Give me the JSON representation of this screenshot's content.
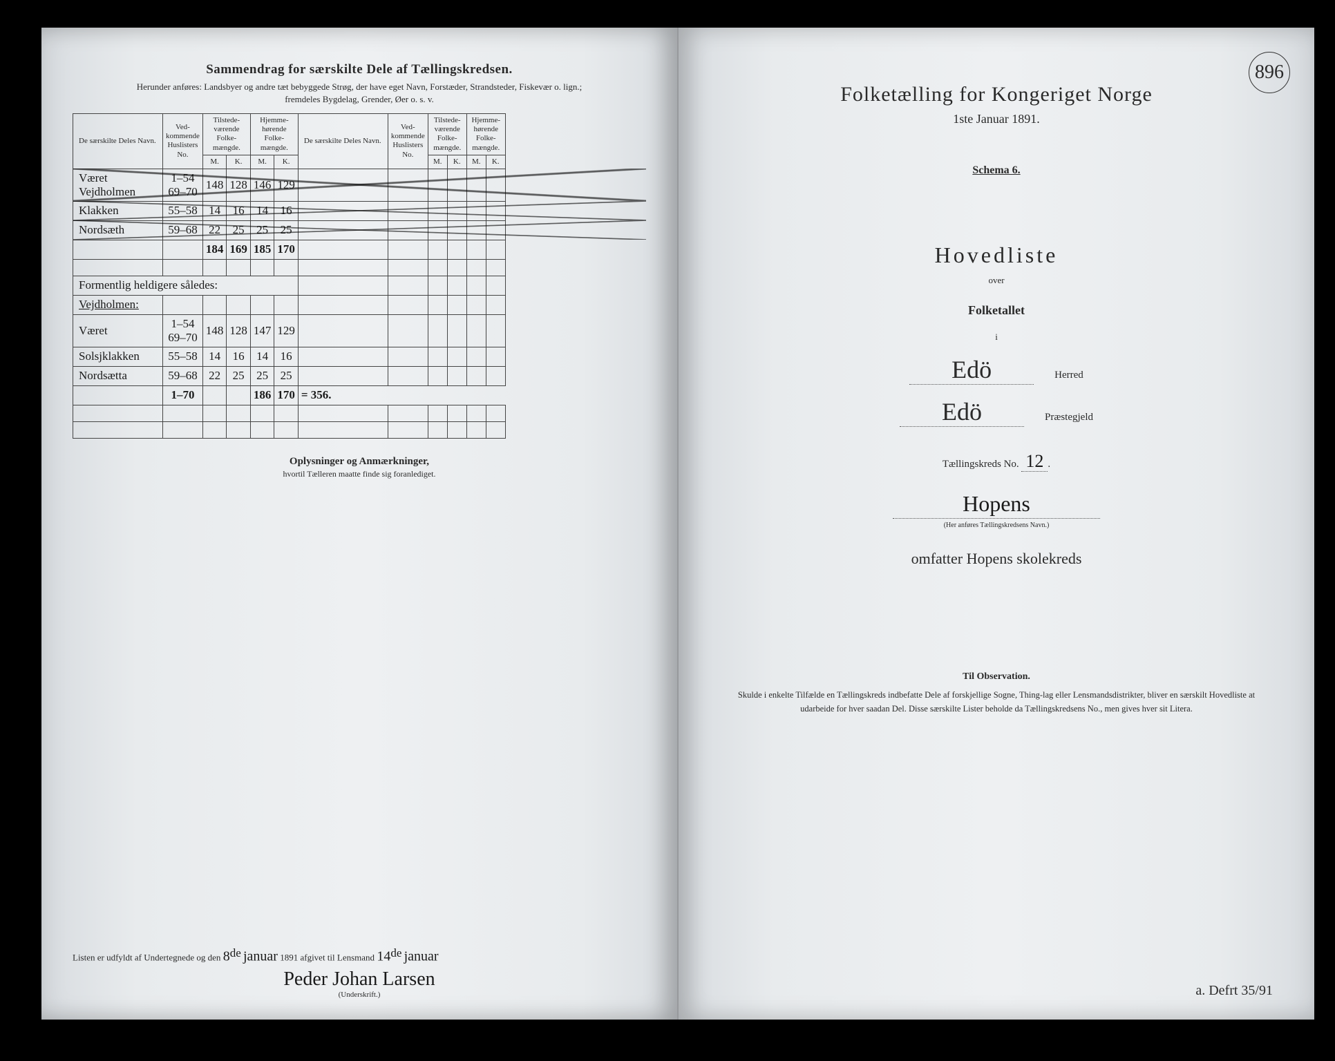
{
  "pageNumber": "896",
  "leftPage": {
    "header": {
      "title": "Sammendrag for særskilte Dele af Tællingskredsen.",
      "sub1": "Herunder anføres: Landsbyer og andre tæt bebyggede Strøg, der have eget Navn, Forstæder, Strandsteder, Fiskevær o. lign.;",
      "sub2": "fremdeles Bygdelag, Grender, Øer o. s. v."
    },
    "tableHeaders": {
      "name": "De særskilte Deles Navn.",
      "huslister": "Ved-\nkommende\nHuslisters\nNo.",
      "tilstede": "Tilstede-\nværende\nFolke-\nmængde.",
      "hjemme": "Hjemme-\nhørende\nFolke-\nmængde.",
      "m": "M.",
      "k": "K."
    },
    "rows1": [
      {
        "name": "Været Vejdholmen",
        "nums": "1–54\n69–70",
        "tm": "148",
        "tk": "128",
        "hm": "146",
        "hk": "129"
      },
      {
        "name": "Klakken",
        "nums": "55–58",
        "tm": "14",
        "tk": "16",
        "hm": "14",
        "hk": "16"
      },
      {
        "name": "Nordsæth",
        "nums": "59–68",
        "tm": "22",
        "tk": "25",
        "hm": "25",
        "hk": "25"
      }
    ],
    "sum1": {
      "tm": "184",
      "tk": "169",
      "hm": "185",
      "hk": "170"
    },
    "noteRow": "Formentlig heldigere således:",
    "subheading": "Vejdholmen:",
    "rows2": [
      {
        "name": "Været",
        "nums": "1–54\n69–70",
        "tm": "148",
        "tk": "128",
        "hm": "147",
        "hk": "129"
      },
      {
        "name": "Solsjklakken",
        "nums": "55–58",
        "tm": "14",
        "tk": "16",
        "hm": "14",
        "hk": "16"
      },
      {
        "name": "Nordsætta",
        "nums": "59–68",
        "tm": "22",
        "tk": "25",
        "hm": "25",
        "hk": "25"
      }
    ],
    "sum2": {
      "nums": "1–70",
      "hm": "186",
      "hk": "170",
      "total": "= 356."
    },
    "notesHeading": "Oplysninger og Anmærkninger,",
    "notesSub": "hvortil Tælleren maatte finde sig foranlediget.",
    "bottomLine": {
      "prefix": "Listen er udfyldt af Undertegnede og den",
      "day": "8",
      "daySup": "de",
      "month": "januar",
      "year": "1891 afgivet til Lensmand",
      "day2": "14",
      "day2Sup": "de",
      "month2": "januar"
    },
    "signature": "Peder Johan Larsen",
    "signatureLabel": "(Underskrift.)"
  },
  "rightPage": {
    "title": "Folketælling for Kongeriget Norge",
    "date": "1ste Januar 1891.",
    "schema": "Schema 6.",
    "hovedliste": "Hovedliste",
    "over": "over",
    "folketallet": "Folketallet",
    "i": "i",
    "herred": "Edö",
    "herredLabel": "Herred",
    "praestegjeld": "Edö",
    "praestegjeldLabel": "Præstegjeld",
    "kredsLabel": "Tællingskreds No.",
    "kredsNo": "12",
    "kredsName": "Hopens",
    "kredsNameSub": "(Her anføres Tællingskredsens Navn.)",
    "omfatter": "omfatter Hopens skolekreds",
    "obsTitle": "Til Observation.",
    "obsText": "Skulde i enkelte Tilfælde en Tællingskreds indbefatte Dele af forskjellige Sogne, Thing-lag eller Lensmandsdistrikter, bliver en særskilt Hovedliste at udarbeide for hver saadan Del. Disse særskilte Lister beholde da Tællingskredsens No., men gives hver sit Litera.",
    "bottomHand": "a. Defrt 35/91"
  }
}
